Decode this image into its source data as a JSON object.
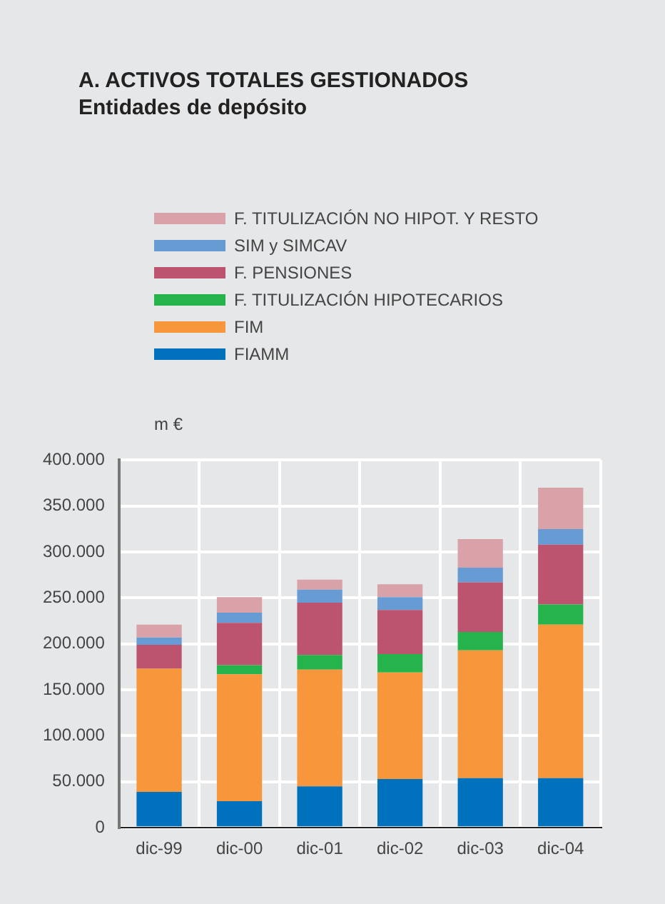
{
  "chart_data": {
    "type": "bar",
    "title": "A. ACTIVOS TOTALES GESTIONADOS",
    "subtitle": "Entidades de depósito",
    "ylabel": "m €",
    "categories": [
      "dic-99",
      "dic-00",
      "dic-01",
      "dic-02",
      "dic-03",
      "dic-04"
    ],
    "series": [
      {
        "name": "FIAMM",
        "color": "#0071bc",
        "values": [
          39000,
          29000,
          45000,
          53000,
          54000,
          54000
        ]
      },
      {
        "name": "FIM",
        "color": "#f7963a",
        "values": [
          134000,
          138000,
          127000,
          116000,
          139000,
          167000
        ]
      },
      {
        "name": "F. TITULIZACIÓN HIPOTECARIOS",
        "color": "#25b34b",
        "values": [
          0,
          10000,
          16000,
          20000,
          20000,
          22000
        ]
      },
      {
        "name": "F. PENSIONES",
        "color": "#bc546f",
        "values": [
          26000,
          46000,
          57000,
          48000,
          54000,
          65000
        ]
      },
      {
        "name": "SIM y SIMCAV",
        "color": "#669bd3",
        "values": [
          8000,
          11000,
          14000,
          14000,
          16000,
          17000
        ]
      },
      {
        "name": "F. TITULIZACIÓN NO HIPOT. Y RESTO",
        "color": "#d9a1a8",
        "values": [
          14000,
          17000,
          11000,
          14000,
          31000,
          45000
        ]
      }
    ],
    "stacked": true,
    "ylim": [
      0,
      400000
    ],
    "yticks": [
      0,
      {
        "value": 50000,
        "label": "50.000"
      },
      {
        "value": 100000,
        "label": "100.000"
      },
      {
        "value": 150000,
        "label": "150.000"
      },
      {
        "value": 200000,
        "label": "200.000"
      },
      {
        "value": 250000,
        "label": "250.000"
      },
      {
        "value": 300000,
        "label": "300.000"
      },
      {
        "value": 350000,
        "label": "350.000"
      },
      {
        "value": 400000,
        "label": "400.000"
      }
    ],
    "grid": true,
    "legend": "top"
  }
}
